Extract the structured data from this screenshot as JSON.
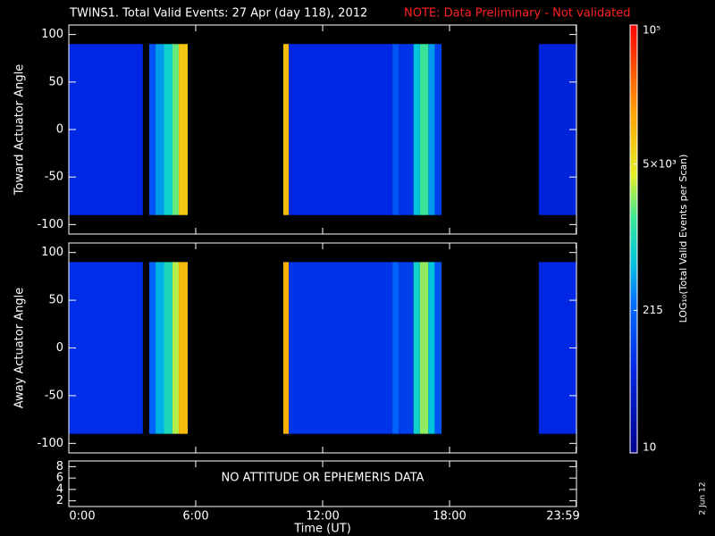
{
  "chart_data": {
    "type": "heatmap",
    "title": "TWINS1. Total Valid Events: 27 Apr (day 118), 2012",
    "note": "NOTE: Data Preliminary - Not validated",
    "xlabel": "Time (UT)",
    "x": [
      0,
      3.5,
      3.8,
      4.1,
      4.5,
      4.9,
      5.2,
      5.62,
      10.14,
      10.4,
      15.3,
      15.6,
      16.3,
      16.6,
      17.0,
      17.3,
      17.62,
      22.22,
      24
    ],
    "xlim": [
      0,
      24
    ],
    "xticks": [
      {
        "value": 0,
        "label": "0:00"
      },
      {
        "value": 6,
        "label": "6:00"
      },
      {
        "value": 12,
        "label": "12:00"
      },
      {
        "value": 18,
        "label": "18:00"
      },
      {
        "value": 23.983,
        "label": "23:59"
      }
    ],
    "panels": [
      {
        "ylabel": "Toward Actuator Angle",
        "ylim": [
          -110,
          110
        ],
        "yticks": [
          -100,
          -50,
          0,
          50,
          100
        ],
        "y_extent": [
          -90,
          90
        ],
        "values": [
          60,
          null,
          150,
          400,
          800,
          2000,
          8000,
          null,
          10000,
          60,
          150,
          80,
          600,
          1500,
          400,
          100,
          null,
          50
        ]
      },
      {
        "ylabel": "Away Actuator Angle",
        "ylim": [
          -110,
          110
        ],
        "yticks": [
          -100,
          -50,
          0,
          50,
          100
        ],
        "y_extent": [
          -90,
          90
        ],
        "values": [
          70,
          null,
          200,
          500,
          1000,
          3000,
          10000,
          null,
          12000,
          80,
          200,
          100,
          800,
          2500,
          600,
          150,
          null,
          60
        ]
      }
    ],
    "status_panel": {
      "ylim": [
        1,
        9
      ],
      "yticks": [
        2,
        4,
        6,
        8
      ],
      "message": "NO ATTITUDE OR EPHEMERIS DATA"
    },
    "colorbar": {
      "label": "LOG₁₀(Total Valid Events per Scan)",
      "log_scale": true,
      "lim": [
        10,
        100000
      ],
      "ticks": [
        10,
        215,
        {
          "value": 5000,
          "label": "5×10³"
        },
        {
          "value": 100000,
          "label": "10⁵"
        }
      ]
    },
    "date_stamp": "2 Jun 12"
  }
}
